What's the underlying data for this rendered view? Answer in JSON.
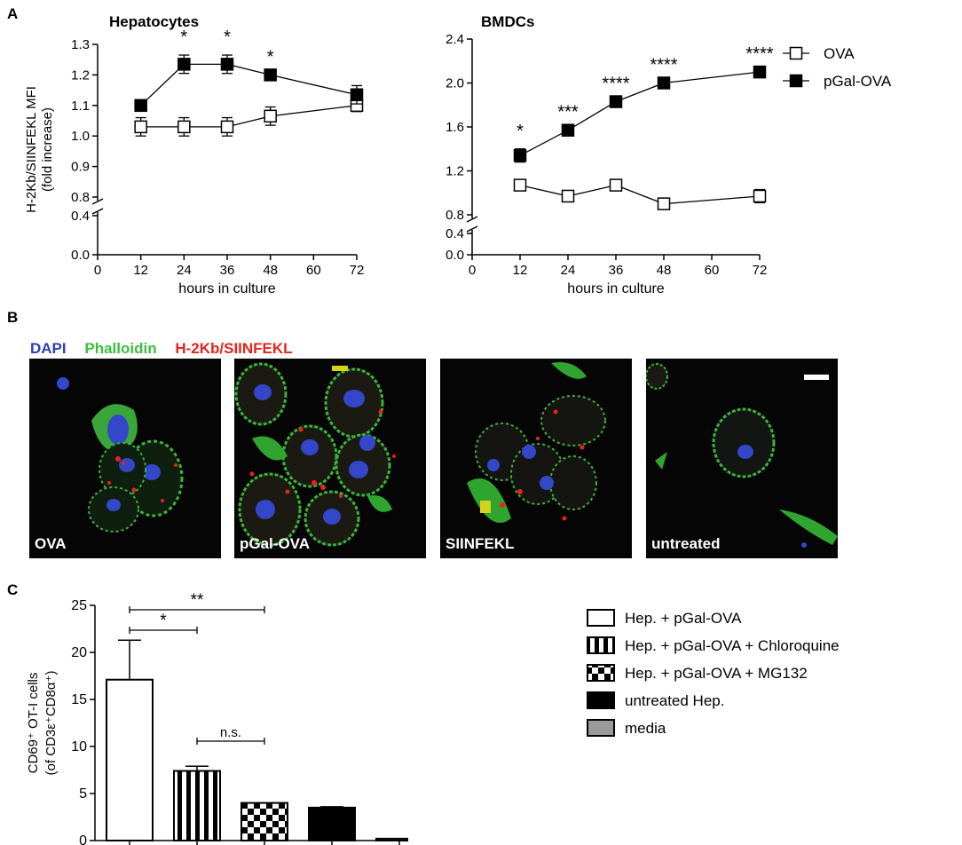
{
  "panels": {
    "a": "A",
    "b": "B",
    "c": "C"
  },
  "chart_data": [
    {
      "type": "line",
      "title": "Hepatocytes",
      "xlabel": "hours in culture",
      "ylabel": "H-2Kb/SIINFEKL MFI",
      "ylabel2": "(fold increase)",
      "x": [
        12,
        24,
        36,
        48,
        72
      ],
      "xticks": [
        "0",
        "12",
        "24",
        "36",
        "48",
        "60",
        "72"
      ],
      "yticks_upper": [
        "0.8",
        "0.9",
        "1.0",
        "1.1",
        "1.2",
        "1.3"
      ],
      "yticks_lower": [
        "0.0",
        "0.4"
      ],
      "ylim_upper": [
        0.8,
        1.3
      ],
      "ylim_lower": [
        0.0,
        0.4
      ],
      "axis_break": true,
      "series": [
        {
          "name": "OVA",
          "marker": "open-square",
          "values": [
            1.03,
            1.03,
            1.03,
            1.065,
            1.1
          ],
          "errors": [
            0.03,
            0.03,
            0.03,
            0.03,
            0.02
          ]
        },
        {
          "name": "pGal-OVA",
          "marker": "filled-square",
          "values": [
            1.1,
            1.235,
            1.235,
            1.2,
            1.135
          ],
          "errors": [
            0.0,
            0.03,
            0.03,
            0.0,
            0.03
          ]
        }
      ],
      "significance": [
        {
          "x": 24,
          "label": "*"
        },
        {
          "x": 36,
          "label": "*"
        },
        {
          "x": 48,
          "label": "*"
        }
      ]
    },
    {
      "type": "line",
      "title": "BMDCs",
      "xlabel": "hours in culture",
      "x": [
        12,
        24,
        36,
        48,
        72
      ],
      "xticks": [
        "0",
        "12",
        "24",
        "36",
        "48",
        "60",
        "72"
      ],
      "yticks_upper": [
        "0.8",
        "1.2",
        "1.6",
        "2.0",
        "2.4"
      ],
      "yticks_lower": [
        "0.0",
        "0.4"
      ],
      "ylim_upper": [
        0.8,
        2.4
      ],
      "ylim_lower": [
        0.0,
        0.4
      ],
      "axis_break": true,
      "series": [
        {
          "name": "OVA",
          "marker": "open-square",
          "values": [
            1.07,
            0.97,
            1.07,
            0.9,
            0.97
          ],
          "errors": [
            0.0,
            0.0,
            0.0,
            0.0,
            0.06
          ]
        },
        {
          "name": "pGal-OVA",
          "marker": "filled-square",
          "values": [
            1.34,
            1.57,
            1.83,
            2.0,
            2.1
          ],
          "errors": [
            0.06,
            0.0,
            0.0,
            0.0,
            0.0
          ]
        }
      ],
      "significance": [
        {
          "x": 12,
          "label": "*"
        },
        {
          "x": 24,
          "label": "***"
        },
        {
          "x": 36,
          "label": "****"
        },
        {
          "x": 48,
          "label": "****"
        },
        {
          "x": 72,
          "label": "****"
        }
      ],
      "legend": [
        "OVA",
        "pGal-OVA"
      ],
      "legend_position": "right"
    },
    {
      "type": "bar",
      "ylabel": "CD69⁺ OT-I cells",
      "ylabel2": "(of CD3ε⁺CD8α⁺)",
      "categories": [
        "Hep. + pGal-OVA",
        "Hep. + pGal-OVA + Chloroquine",
        "Hep. + pGal-OVA + MG132",
        "untreated Hep.",
        "media"
      ],
      "values": [
        17.1,
        7.4,
        4.0,
        3.5,
        0.2
      ],
      "errors": [
        4.2,
        0.5,
        0.0,
        0.1,
        0.0
      ],
      "fills": [
        "white",
        "vertical-stripes",
        "checker",
        "black",
        "gray"
      ],
      "yticks": [
        "0",
        "5",
        "10",
        "15",
        "20",
        "25"
      ],
      "ylim": [
        0,
        25
      ],
      "significance": [
        {
          "from": 0,
          "to": 2,
          "label": "**"
        },
        {
          "from": 0,
          "to": 1,
          "label": "*"
        },
        {
          "from": 1,
          "to": 2,
          "label": "n.s."
        }
      ],
      "legend_position": "right"
    }
  ],
  "microscopy": {
    "stains": [
      {
        "label": "DAPI",
        "color": "#2b3fb8"
      },
      {
        "label": "Phalloidin",
        "color": "#3dbe3d"
      },
      {
        "label": "H-2Kb/SIINFEKL",
        "color": "#e8231c"
      }
    ],
    "images": [
      {
        "label": "OVA"
      },
      {
        "label": "pGal-OVA"
      },
      {
        "label": "SIINFEKL"
      },
      {
        "label": "untreated"
      }
    ]
  }
}
